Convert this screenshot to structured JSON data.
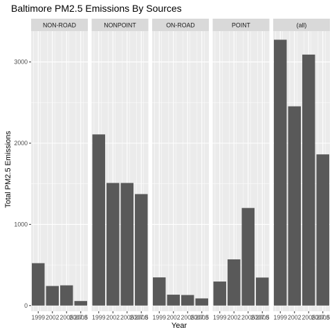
{
  "chart_data": {
    "type": "bar",
    "title": "Baltimore PM2.5 Emissions By Sources",
    "xlabel": "Year",
    "ylabel": "Total PM2.5 Emissions",
    "ylim": [
      -70,
      3380
    ],
    "yticks": [
      0,
      1000,
      2000,
      3000
    ],
    "xticks": [
      1999,
      2002,
      2005,
      2008
    ],
    "xtick_labels": [
      "1999",
      "2002",
      "2005",
      "2008"
    ],
    "xlim": [
      1997.5,
      2009.5
    ],
    "xtick_label_full": "2007.5",
    "grid": true,
    "facet_background": "#ebebeb",
    "strip_background": "#d9d9d9",
    "bar_color": "#595959",
    "panels": [
      {
        "strip": "NON-ROAD",
        "x": [
          1999,
          2002,
          2005,
          2008
        ],
        "values": [
          522,
          241,
          249,
          56
        ]
      },
      {
        "strip": "NONPOINT",
        "x": [
          1999,
          2002,
          2005,
          2008
        ],
        "values": [
          2108,
          1510,
          1510,
          1373
        ]
      },
      {
        "strip": "ON-ROAD",
        "x": [
          1999,
          2002,
          2005,
          2008
        ],
        "values": [
          347,
          134,
          130,
          88
        ]
      },
      {
        "strip": "POINT",
        "x": [
          1999,
          2002,
          2005,
          2008
        ],
        "values": [
          296,
          569,
          1202,
          345
        ]
      },
      {
        "strip": "(all)",
        "x": [
          1999,
          2002,
          2005,
          2008
        ],
        "values": [
          3274,
          2454,
          3091,
          1862
        ]
      }
    ]
  }
}
